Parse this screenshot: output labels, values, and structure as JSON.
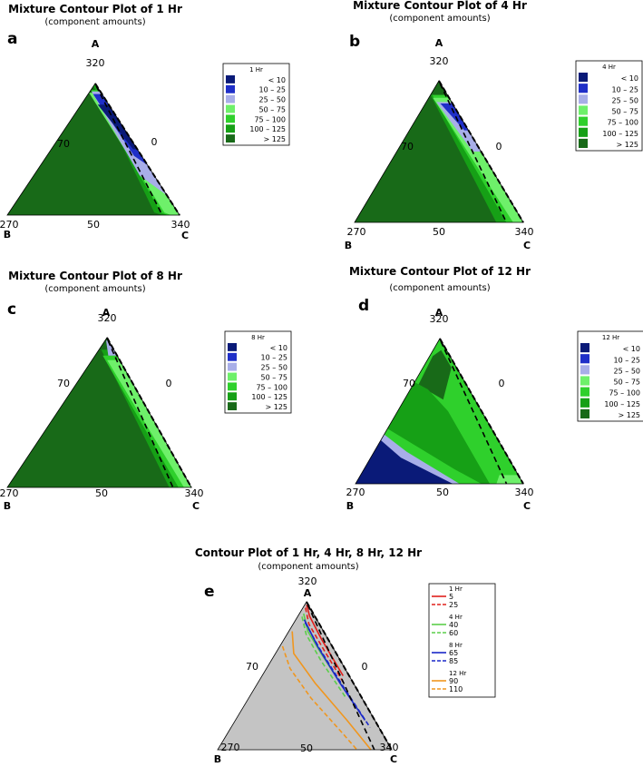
{
  "chart_data": [
    {
      "type": "contour",
      "panel_label": "a",
      "title": "Mixture Contour Plot of 1 Hr",
      "subtitle": "(component amounts)",
      "vertices": {
        "top": "A",
        "left": "B",
        "right": "C"
      },
      "vertex_values": {
        "top": "320",
        "left": "270",
        "right": "340"
      },
      "edge_ticks": {
        "left": "70",
        "right": "0",
        "bottom": "50"
      },
      "legend_title": "1 Hr",
      "levels": [
        {
          "range": "<   10",
          "color": "#0a1a78"
        },
        {
          "range": "10  –   25",
          "color": "#1f2fc8"
        },
        {
          "range": "25  –   50",
          "color": "#a8aee8"
        },
        {
          "range": "50  –   75",
          "color": "#6ef06a"
        },
        {
          "range": "75  –  100",
          "color": "#2fd02c"
        },
        {
          "range": "100  –  125",
          "color": "#16a016"
        },
        {
          "range": ">  125",
          "color": "#186a18"
        }
      ]
    },
    {
      "type": "contour",
      "panel_label": "b",
      "title": "Mixture Contour Plot of 4 Hr",
      "subtitle": "(component amounts)",
      "vertices": {
        "top": "A",
        "left": "B",
        "right": "C"
      },
      "vertex_values": {
        "top": "320",
        "left": "270",
        "right": "340"
      },
      "edge_ticks": {
        "left": "70",
        "right": "0",
        "bottom": "50"
      },
      "legend_title": "4 Hr",
      "levels": [
        {
          "range": "<   10",
          "color": "#0a1a78"
        },
        {
          "range": "10  –   25",
          "color": "#1f2fc8"
        },
        {
          "range": "25  –   50",
          "color": "#a8aee8"
        },
        {
          "range": "50  –   75",
          "color": "#6ef06a"
        },
        {
          "range": "75  –  100",
          "color": "#2fd02c"
        },
        {
          "range": "100  –  125",
          "color": "#16a016"
        },
        {
          "range": ">  125",
          "color": "#186a18"
        }
      ]
    },
    {
      "type": "contour",
      "panel_label": "c",
      "title": "Mixture Contour Plot of 8 Hr",
      "subtitle": "(component amounts)",
      "vertices": {
        "top": "A",
        "left": "B",
        "right": "C"
      },
      "vertex_values": {
        "top": "320",
        "left": "270",
        "right": "340"
      },
      "edge_ticks": {
        "left": "70",
        "right": "0",
        "bottom": "50"
      },
      "legend_title": "8 Hr",
      "levels": [
        {
          "range": "<   10",
          "color": "#0a1a78"
        },
        {
          "range": "10  –   25",
          "color": "#1f2fc8"
        },
        {
          "range": "25  –   50",
          "color": "#a8aee8"
        },
        {
          "range": "50  –   75",
          "color": "#6ef06a"
        },
        {
          "range": "75  –  100",
          "color": "#2fd02c"
        },
        {
          "range": "100  –  125",
          "color": "#16a016"
        },
        {
          "range": ">  125",
          "color": "#186a18"
        }
      ]
    },
    {
      "type": "contour",
      "panel_label": "d",
      "title": "Mixture Contour Plot of 12 Hr",
      "subtitle": "(component amounts)",
      "vertices": {
        "top": "A",
        "left": "B",
        "right": "C"
      },
      "vertex_values": {
        "top": "320",
        "left": "270",
        "right": "340"
      },
      "edge_ticks": {
        "left": "70",
        "right": "0",
        "bottom": "50"
      },
      "legend_title": "12 Hr",
      "levels": [
        {
          "range": "<   10",
          "color": "#0a1a78"
        },
        {
          "range": "10  –   25",
          "color": "#1f2fc8"
        },
        {
          "range": "25  –   50",
          "color": "#a8aee8"
        },
        {
          "range": "50  –   75",
          "color": "#6ef06a"
        },
        {
          "range": "75  –  100",
          "color": "#2fd02c"
        },
        {
          "range": "100  –  125",
          "color": "#16a016"
        },
        {
          "range": ">  125",
          "color": "#186a18"
        }
      ]
    },
    {
      "type": "contour",
      "panel_label": "e",
      "title": "Contour Plot of 1 Hr, 4 Hr, 8 Hr, 12 Hr",
      "subtitle": "(component amounts)",
      "vertices": {
        "top": "A",
        "left": "B",
        "right": "C"
      },
      "vertex_values": {
        "top": "320",
        "left": "270",
        "right": "340"
      },
      "edge_ticks": {
        "left": "70",
        "right": "0",
        "bottom": "50"
      },
      "legend_groups": [
        {
          "name": "1 Hr",
          "color": "#e0201c",
          "entries": [
            {
              "value": "5",
              "style": "solid"
            },
            {
              "value": "25",
              "style": "dashed"
            }
          ]
        },
        {
          "name": "4 Hr",
          "color": "#5ccf4a",
          "entries": [
            {
              "value": "40",
              "style": "solid"
            },
            {
              "value": "60",
              "style": "dashed"
            }
          ]
        },
        {
          "name": "8 Hr",
          "color": "#1a28c8",
          "entries": [
            {
              "value": "65",
              "style": "solid"
            },
            {
              "value": "85",
              "style": "dashed"
            }
          ]
        },
        {
          "name": "12 Hr",
          "color": "#f0961e",
          "entries": [
            {
              "value": "90",
              "style": "solid"
            },
            {
              "value": "110",
              "style": "dashed"
            }
          ]
        }
      ]
    }
  ]
}
